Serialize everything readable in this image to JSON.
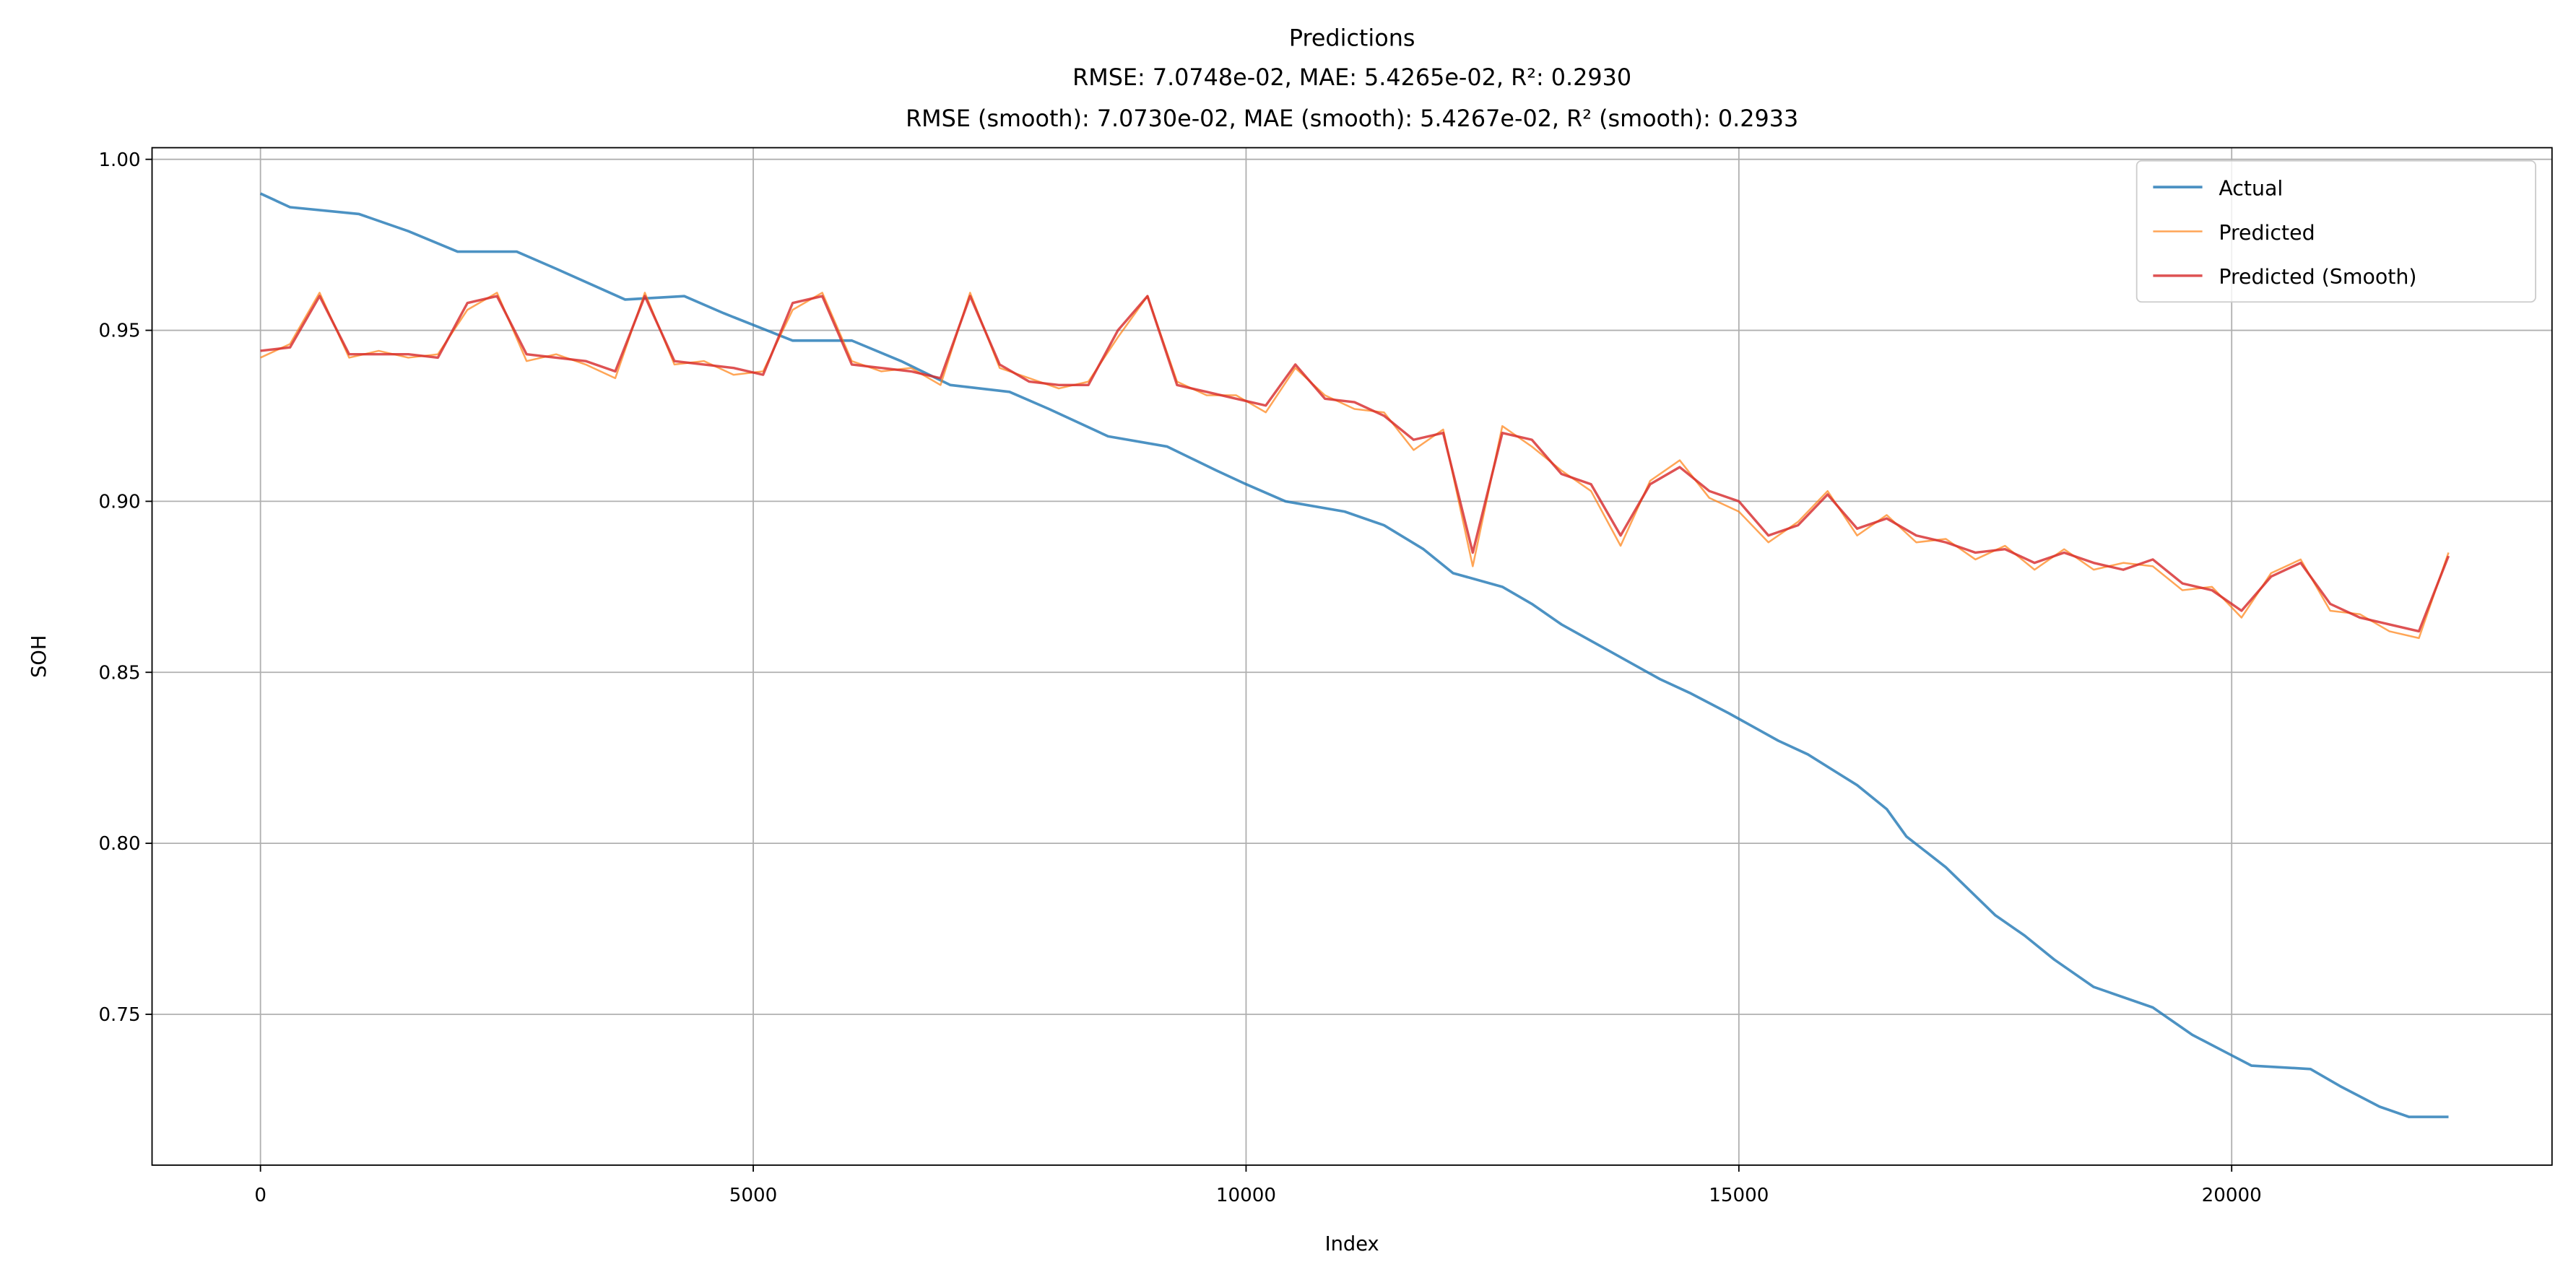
{
  "chart_data": {
    "type": "line",
    "title": "Predictions",
    "subtitle": [
      "RMSE: 7.0748e-02, MAE: 5.4265e-02, R²: 0.2930",
      "RMSE (smooth): 7.0730e-02, MAE (smooth): 5.4267e-02, R² (smooth): 0.2933"
    ],
    "x_label": "Index",
    "y_label": "SOH",
    "xlim": [
      -1100,
      23250
    ],
    "ylim": [
      0.7059,
      1.0034
    ],
    "xticks": [
      0,
      5000,
      10000,
      15000,
      20000
    ],
    "yticks": [
      0.75,
      {
        "value": 0.8,
        "label": "0.80"
      },
      0.85,
      {
        "value": 0.9,
        "label": "0.90"
      },
      0.95,
      {
        "value": 1,
        "label": "1.00"
      }
    ],
    "grid": true,
    "legend": "upper right",
    "series": [
      {
        "name": "Actual",
        "color": "#1f77b4",
        "x": [
          0,
          300,
          1000,
          1500,
          2000,
          2600,
          3000,
          3700,
          4300,
          4700,
          5400,
          6000,
          6500,
          7000,
          7600,
          8000,
          8600,
          9200,
          9700,
          10000,
          10400,
          11000,
          11400,
          11800,
          12100,
          12600,
          12900,
          13200,
          13700,
          14200,
          14500,
          14900,
          15400,
          15700,
          16200,
          16500,
          16700,
          17100,
          17600,
          17900,
          18200,
          18600,
          19200,
          19600,
          20000,
          20200,
          20800,
          21100,
          21500,
          21800,
          22200
        ],
        "values": [
          0.99,
          0.986,
          0.984,
          0.979,
          0.973,
          0.973,
          0.968,
          0.959,
          0.96,
          0.955,
          0.947,
          0.947,
          0.941,
          0.934,
          0.932,
          0.927,
          0.919,
          0.916,
          0.909,
          0.905,
          0.9,
          0.897,
          0.893,
          0.886,
          0.879,
          0.875,
          0.87,
          0.864,
          0.856,
          0.848,
          0.844,
          0.838,
          0.83,
          0.826,
          0.817,
          0.81,
          0.802,
          0.793,
          0.779,
          0.773,
          0.766,
          0.758,
          0.752,
          0.744,
          0.738,
          0.735,
          0.734,
          0.729,
          0.723,
          0.72,
          0.72
        ]
      },
      {
        "name": "Predicted",
        "color": "#ff7f0e",
        "x": [
          0,
          300,
          600,
          900,
          1200,
          1500,
          1800,
          2100,
          2400,
          2700,
          3000,
          3300,
          3600,
          3900,
          4200,
          4500,
          4800,
          5100,
          5400,
          5700,
          6000,
          6300,
          6600,
          6900,
          7200,
          7500,
          7800,
          8100,
          8400,
          8700,
          9000,
          9300,
          9600,
          9900,
          10200,
          10500,
          10800,
          11100,
          11400,
          11700,
          12000,
          12300,
          12600,
          12900,
          13200,
          13500,
          13800,
          14100,
          14400,
          14700,
          15000,
          15300,
          15600,
          15900,
          16200,
          16500,
          16800,
          17100,
          17400,
          17700,
          18000,
          18300,
          18600,
          18900,
          19200,
          19500,
          19800,
          20100,
          20400,
          20700,
          21000,
          21300,
          21600,
          21900,
          22200
        ],
        "values": [
          0.942,
          0.946,
          0.961,
          0.942,
          0.944,
          0.942,
          0.943,
          0.956,
          0.961,
          0.941,
          0.943,
          0.94,
          0.936,
          0.961,
          0.94,
          0.941,
          0.937,
          0.938,
          0.956,
          0.961,
          0.941,
          0.938,
          0.939,
          0.934,
          0.961,
          0.939,
          0.936,
          0.933,
          0.935,
          0.948,
          0.96,
          0.935,
          0.931,
          0.931,
          0.926,
          0.939,
          0.931,
          0.927,
          0.926,
          0.915,
          0.921,
          0.881,
          0.922,
          0.916,
          0.909,
          0.903,
          0.887,
          0.906,
          0.912,
          0.901,
          0.897,
          0.888,
          0.894,
          0.903,
          0.89,
          0.896,
          0.888,
          0.889,
          0.883,
          0.887,
          0.88,
          0.886,
          0.88,
          0.882,
          0.881,
          0.874,
          0.875,
          0.866,
          0.879,
          0.883,
          0.868,
          0.867,
          0.862,
          0.86,
          0.885
        ]
      },
      {
        "name": "Predicted (Smooth)",
        "color": "#d62728",
        "x": [
          0,
          300,
          600,
          900,
          1200,
          1500,
          1800,
          2100,
          2400,
          2700,
          3000,
          3300,
          3600,
          3900,
          4200,
          4500,
          4800,
          5100,
          5400,
          5700,
          6000,
          6300,
          6600,
          6900,
          7200,
          7500,
          7800,
          8100,
          8400,
          8700,
          9000,
          9300,
          9600,
          9900,
          10200,
          10500,
          10800,
          11100,
          11400,
          11700,
          12000,
          12300,
          12600,
          12900,
          13200,
          13500,
          13800,
          14100,
          14400,
          14700,
          15000,
          15300,
          15600,
          15900,
          16200,
          16500,
          16800,
          17100,
          17400,
          17700,
          18000,
          18300,
          18600,
          18900,
          19200,
          19500,
          19800,
          20100,
          20400,
          20700,
          21000,
          21300,
          21600,
          21900,
          22200
        ],
        "values": [
          0.944,
          0.945,
          0.96,
          0.943,
          0.943,
          0.943,
          0.942,
          0.958,
          0.96,
          0.943,
          0.942,
          0.941,
          0.938,
          0.96,
          0.941,
          0.94,
          0.939,
          0.937,
          0.958,
          0.96,
          0.94,
          0.939,
          0.938,
          0.936,
          0.96,
          0.94,
          0.935,
          0.934,
          0.934,
          0.95,
          0.96,
          0.934,
          0.932,
          0.93,
          0.928,
          0.94,
          0.93,
          0.929,
          0.925,
          0.918,
          0.92,
          0.885,
          0.92,
          0.918,
          0.908,
          0.905,
          0.89,
          0.905,
          0.91,
          0.903,
          0.9,
          0.89,
          0.893,
          0.902,
          0.892,
          0.895,
          0.89,
          0.888,
          0.885,
          0.886,
          0.882,
          0.885,
          0.882,
          0.88,
          0.883,
          0.876,
          0.874,
          0.868,
          0.878,
          0.882,
          0.87,
          0.866,
          0.864,
          0.862,
          0.884
        ]
      }
    ]
  }
}
